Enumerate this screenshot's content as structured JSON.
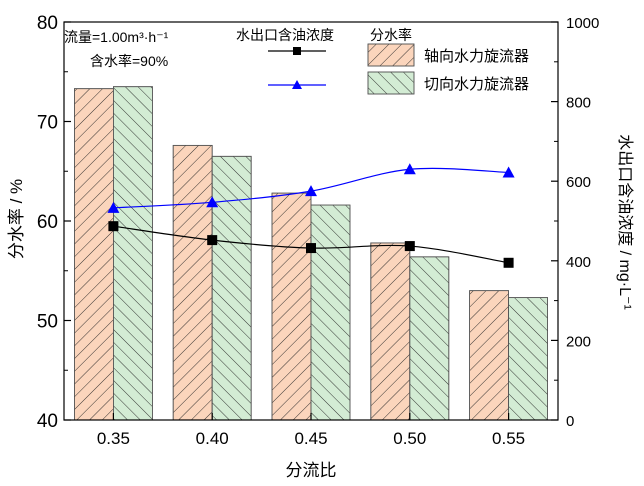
{
  "chart_data": {
    "type": "bar",
    "categories": [
      "0.35",
      "0.40",
      "0.45",
      "0.50",
      "0.55"
    ],
    "xlabel": "分流比",
    "ylabel": "分水率 / %",
    "y2label": "水出口含油浓度 / mg·L⁻¹",
    "ylim": [
      40,
      80
    ],
    "y_ticks": [
      "40",
      "50",
      "60",
      "70",
      "80"
    ],
    "y2lim": [
      0,
      1000
    ],
    "y2_ticks": [
      "0",
      "200",
      "400",
      "600",
      "800",
      "1000"
    ],
    "series": [
      {
        "name": "轴向水力旋流器",
        "kind": "bar",
        "axis": "left",
        "values": [
          73.3,
          67.6,
          62.8,
          57.8,
          53.0
        ],
        "fill": "#fbd5bc",
        "hatch": "forward"
      },
      {
        "name": "切向水力旋流器",
        "kind": "bar",
        "axis": "left",
        "values": [
          73.5,
          66.5,
          61.6,
          56.4,
          52.3
        ],
        "fill": "#d3ecd4",
        "hatch": "backward"
      },
      {
        "name": "",
        "kind": "line",
        "axis": "right",
        "values": [
          487,
          452,
          432,
          437,
          395
        ],
        "color": "#000000",
        "marker": "square"
      },
      {
        "name": "",
        "kind": "line",
        "axis": "right",
        "values": [
          533,
          547,
          575,
          630,
          622
        ],
        "color": "#0000ff",
        "marker": "triangle"
      }
    ],
    "annotations": [
      "流量=1.00m³·h⁻¹",
      "含水率=90%"
    ],
    "legend_headers": [
      "水出口含油浓度",
      "分水率"
    ],
    "legend_placement": "top-right",
    "grid": false
  }
}
